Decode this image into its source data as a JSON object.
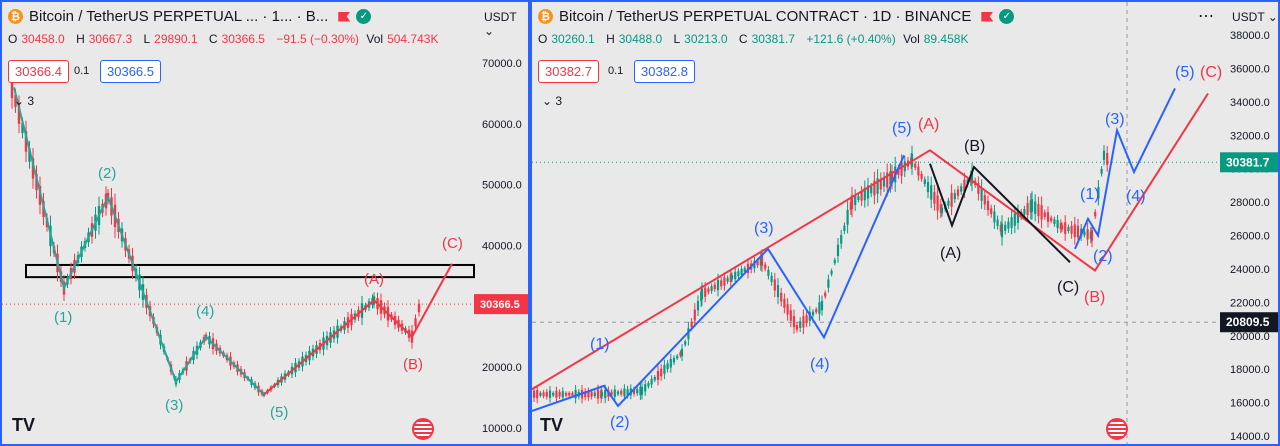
{
  "left": {
    "title": "Bitcoin / TetherUS PERPETUAL ... · 1... · B...",
    "ohlc": {
      "o_label": "O",
      "o": "30458.0",
      "h_label": "H",
      "h": "30667.3",
      "l_label": "L",
      "l": "29890.1",
      "c_label": "C",
      "c": "30366.5",
      "chg": "−91.5 (−0.30%)",
      "vol_label": "Vol",
      "vol": "504.743K"
    },
    "bid": "30366.4",
    "spread": "0.1",
    "ask": "30366.5",
    "indicator_count": "3",
    "currency": "USDT",
    "price_tag": "30366.5",
    "wave_labels": [
      "(1)",
      "(2)",
      "(3)",
      "(4)",
      "(5)",
      "(A)",
      "(B)",
      "(C)"
    ],
    "colors": {
      "wave": "#26a69a",
      "abc": "#f23645",
      "up": "#089981",
      "down": "#f23645"
    }
  },
  "right": {
    "title": "Bitcoin / TetherUS PERPETUAL CONTRACT · 1D · BINANCE",
    "ohlc": {
      "o_label": "O",
      "o": "30260.1",
      "h_label": "H",
      "h": "30488.0",
      "l_label": "L",
      "l": "30213.0",
      "c_label": "C",
      "c": "30381.7",
      "chg": "+121.6 (+0.40%)",
      "vol_label": "Vol",
      "vol": "89.458K"
    },
    "bid": "30382.7",
    "spread": "0.1",
    "ask": "30382.8",
    "indicator_count": "3",
    "currency": "USDT",
    "price_tag": "30381.7",
    "crosshair_tag": "20809.5",
    "blue_labels": [
      "(1)",
      "(2)",
      "(3)",
      "(4)",
      "(5)",
      "(1)",
      "(2)",
      "(3)",
      "(4)",
      "(5)"
    ],
    "red_labels": [
      "(A)",
      "(B)",
      "(C)"
    ],
    "black_labels": [
      "(A)",
      "(B)",
      "(C)"
    ],
    "colors": {
      "blue": "#2962ff",
      "red": "#f23645",
      "black": "#131722",
      "tag": "#089981"
    }
  },
  "chart_data": [
    {
      "type": "candlestick",
      "title": "Bitcoin / TetherUS PERPETUAL ... · 1... · B...",
      "y_ticks": [
        "70000.0",
        "60000.0",
        "50000.0",
        "40000.0",
        "30000.0",
        "20000.0",
        "10000.0"
      ],
      "ylim": [
        8000,
        73000
      ],
      "last_price": 30366.5,
      "wave_path": [
        {
          "label": "",
          "y": 66000
        },
        {
          "label": "(1)",
          "y": 33000
        },
        {
          "label": "(2)",
          "y": 48000
        },
        {
          "label": "(3)",
          "y": 17600
        },
        {
          "label": "(4)",
          "y": 25000
        },
        {
          "label": "(5)",
          "y": 15500
        }
      ],
      "abc_path": [
        {
          "label": "",
          "y": 15500
        },
        {
          "label": "(A)",
          "y": 31000
        },
        {
          "label": "(B)",
          "y": 25000
        },
        {
          "label": "(C)",
          "y": 37000
        }
      ],
      "resistance_zone": [
        34800,
        36800
      ]
    },
    {
      "type": "candlestick",
      "title": "Bitcoin / TetherUS PERPETUAL CONTRACT · 1D · BINANCE",
      "y_ticks": [
        "38000.0",
        "36000.0",
        "34000.0",
        "32000.0",
        "30000.0",
        "28000.0",
        "26000.0",
        "24000.0",
        "22000.0",
        "20000.0",
        "18000.0",
        "16000.0",
        "14000.0"
      ],
      "ylim": [
        13700,
        38200
      ],
      "last_price": 30381.7,
      "crosshair_price": 20809.5
    }
  ]
}
